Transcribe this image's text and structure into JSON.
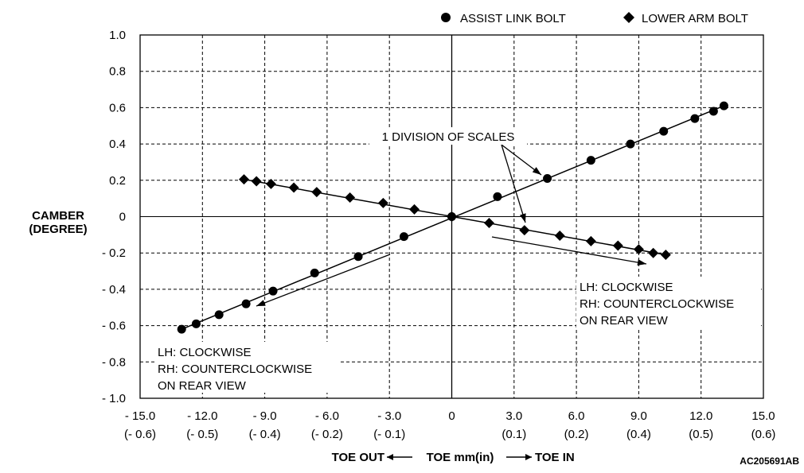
{
  "chart_data": {
    "type": "scatter",
    "title": "",
    "legend": [
      {
        "name": "ASSIST LINK BOLT",
        "marker": "circle"
      },
      {
        "name": "LOWER ARM BOLT",
        "marker": "diamond"
      }
    ],
    "legend_position": "top-right",
    "ylabel_lines": [
      "CAMBER",
      "(DEGREE)"
    ],
    "xlabel": {
      "left": "TOE OUT",
      "center": "TOE mm(in)",
      "right": "TOE IN"
    },
    "xlim": [
      -15.0,
      15.0
    ],
    "ylim": [
      -1.0,
      1.0
    ],
    "grid": true,
    "x_ticks": [
      {
        "value": -15,
        "mm": "- 15.0",
        "inch": "(- 0.6)"
      },
      {
        "value": -12,
        "mm": "- 12.0",
        "inch": "(- 0.5)"
      },
      {
        "value": -9,
        "mm": "- 9.0",
        "inch": "(- 0.4)"
      },
      {
        "value": -6,
        "mm": "- 6.0",
        "inch": "(- 0.2)"
      },
      {
        "value": -3,
        "mm": "- 3.0",
        "inch": "(- 0.1)"
      },
      {
        "value": 0,
        "mm": "0",
        "inch": ""
      },
      {
        "value": 3,
        "mm": "3.0",
        "inch": "(0.1)"
      },
      {
        "value": 6,
        "mm": "6.0",
        "inch": "(0.2)"
      },
      {
        "value": 9,
        "mm": "9.0",
        "inch": "(0.4)"
      },
      {
        "value": 12,
        "mm": "12.0",
        "inch": "(0.5)"
      },
      {
        "value": 15,
        "mm": "15.0",
        "inch": "(0.6)"
      }
    ],
    "y_ticks": [
      {
        "value": 1.0,
        "label": "1.0"
      },
      {
        "value": 0.8,
        "label": "0.8"
      },
      {
        "value": 0.6,
        "label": "0.6"
      },
      {
        "value": 0.4,
        "label": "0.4"
      },
      {
        "value": 0.2,
        "label": "0.2"
      },
      {
        "value": 0,
        "label": "0"
      },
      {
        "value": -0.2,
        "label": "- 0.2"
      },
      {
        "value": -0.4,
        "label": "- 0.4"
      },
      {
        "value": -0.6,
        "label": "- 0.6"
      },
      {
        "value": -0.8,
        "label": "- 0.8"
      },
      {
        "value": -1.0,
        "label": "- 1.0"
      }
    ],
    "series": [
      {
        "name": "ASSIST LINK BOLT",
        "marker": "circle",
        "points": [
          {
            "x": -13.0,
            "y": -0.62
          },
          {
            "x": -12.3,
            "y": -0.59
          },
          {
            "x": -11.2,
            "y": -0.54
          },
          {
            "x": -9.9,
            "y": -0.48
          },
          {
            "x": -8.6,
            "y": -0.41
          },
          {
            "x": -6.6,
            "y": -0.31
          },
          {
            "x": -4.5,
            "y": -0.22
          },
          {
            "x": -2.3,
            "y": -0.11
          },
          {
            "x": 0.0,
            "y": 0.0
          },
          {
            "x": 2.2,
            "y": 0.11
          },
          {
            "x": 4.6,
            "y": 0.21
          },
          {
            "x": 6.7,
            "y": 0.31
          },
          {
            "x": 8.6,
            "y": 0.4
          },
          {
            "x": 10.2,
            "y": 0.47
          },
          {
            "x": 11.7,
            "y": 0.54
          },
          {
            "x": 12.6,
            "y": 0.58
          },
          {
            "x": 13.1,
            "y": 0.61
          }
        ]
      },
      {
        "name": "LOWER ARM BOLT",
        "marker": "diamond",
        "points": [
          {
            "x": -10.0,
            "y": 0.205
          },
          {
            "x": -9.4,
            "y": 0.195
          },
          {
            "x": -8.7,
            "y": 0.18
          },
          {
            "x": -7.6,
            "y": 0.16
          },
          {
            "x": -6.5,
            "y": 0.135
          },
          {
            "x": -4.9,
            "y": 0.105
          },
          {
            "x": -3.3,
            "y": 0.075
          },
          {
            "x": -1.8,
            "y": 0.04
          },
          {
            "x": 0.0,
            "y": 0.0
          },
          {
            "x": 1.8,
            "y": -0.035
          },
          {
            "x": 3.5,
            "y": -0.075
          },
          {
            "x": 5.2,
            "y": -0.105
          },
          {
            "x": 6.7,
            "y": -0.135
          },
          {
            "x": 8.0,
            "y": -0.16
          },
          {
            "x": 9.0,
            "y": -0.18
          },
          {
            "x": 9.7,
            "y": -0.2
          },
          {
            "x": 10.3,
            "y": -0.21
          }
        ]
      }
    ],
    "annotations": {
      "division": "1 DIVISION OF SCALES",
      "left_note": [
        "LH: CLOCKWISE",
        "RH: COUNTERCLOCKWISE",
        "ON REAR VIEW"
      ],
      "right_note": [
        "LH: CLOCKWISE",
        "RH: COUNTERCLOCKWISE",
        "ON REAR VIEW"
      ]
    },
    "figure_id": "AC205691AB"
  }
}
